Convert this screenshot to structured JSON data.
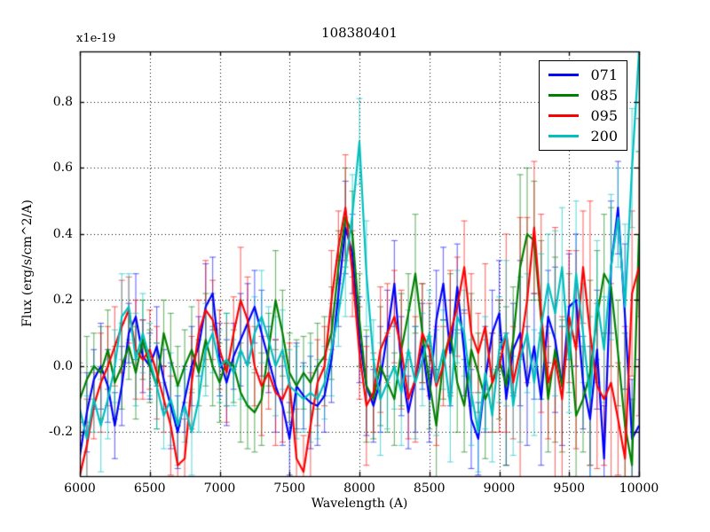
{
  "chart_data": {
    "type": "line",
    "title": "108380401",
    "offset_text": "x1e-19",
    "xlabel": "Wavelength (A)",
    "ylabel": "Flux (erg/s/cm^2/A)",
    "xlim": [
      6000,
      10000
    ],
    "ylim": [
      -0.333,
      0.953
    ],
    "xticks": [
      6000,
      6500,
      7000,
      7500,
      8000,
      8500,
      9000,
      9500,
      10000
    ],
    "xtick_labels": [
      "6000",
      "6500",
      "7000",
      "7500",
      "8000",
      "8500",
      "9000",
      "9500",
      "10000"
    ],
    "yticks": [
      -0.2,
      0.0,
      0.2,
      0.4,
      0.6,
      0.8
    ],
    "ytick_labels": [
      "-0.2",
      "0.0",
      "0.2",
      "0.4",
      "0.6",
      "0.8"
    ],
    "grid": true,
    "grid_style": "dotted",
    "legend_position": "upper right",
    "x": [
      6000,
      6050,
      6100,
      6150,
      6200,
      6250,
      6300,
      6350,
      6400,
      6450,
      6500,
      6550,
      6600,
      6650,
      6700,
      6750,
      6800,
      6850,
      6900,
      6950,
      7000,
      7050,
      7100,
      7150,
      7200,
      7250,
      7300,
      7350,
      7400,
      7450,
      7500,
      7550,
      7600,
      7650,
      7700,
      7750,
      7800,
      7850,
      7900,
      7950,
      8000,
      8050,
      8100,
      8150,
      8200,
      8250,
      8300,
      8350,
      8400,
      8450,
      8500,
      8550,
      8600,
      8650,
      8700,
      8750,
      8800,
      8850,
      8900,
      8950,
      9000,
      9050,
      9100,
      9150,
      9200,
      9250,
      9300,
      9350,
      9400,
      9450,
      9500,
      9550,
      9600,
      9650,
      9700,
      9750,
      9800,
      9850,
      9900,
      9950,
      10000
    ],
    "series": [
      {
        "name": "071",
        "color": "#0000ff",
        "values": [
          -0.27,
          -0.14,
          -0.04,
          0.0,
          -0.06,
          -0.18,
          -0.06,
          0.1,
          0.15,
          0.03,
          0.0,
          0.06,
          -0.04,
          -0.12,
          -0.2,
          -0.1,
          0.0,
          0.06,
          0.18,
          0.22,
          0.02,
          -0.05,
          0.03,
          0.08,
          0.13,
          0.18,
          0.1,
          0.02,
          -0.06,
          -0.12,
          -0.22,
          -0.06,
          -0.09,
          -0.11,
          -0.12,
          -0.09,
          0.02,
          0.22,
          0.42,
          0.34,
          0.08,
          -0.06,
          -0.12,
          -0.04,
          0.1,
          0.25,
          0.0,
          -0.14,
          -0.04,
          0.06,
          -0.1,
          0.14,
          0.25,
          0.04,
          0.24,
          0.04,
          -0.16,
          -0.22,
          -0.04,
          0.1,
          0.16,
          -0.1,
          0.05,
          0.1,
          -0.06,
          0.06,
          -0.1,
          0.15,
          0.08,
          -0.06,
          0.18,
          0.2,
          -0.05,
          -0.16,
          0.05,
          -0.28,
          0.3,
          0.48,
          0.15,
          -0.22,
          -0.18
        ],
        "errors": [
          0.1,
          0.12,
          0.09,
          0.13,
          0.11,
          0.1,
          0.12,
          0.09,
          0.13,
          0.11,
          0.1,
          0.12,
          0.09,
          0.13,
          0.11,
          0.1,
          0.12,
          0.09,
          0.13,
          0.11,
          0.11,
          0.13,
          0.1,
          0.14,
          0.12,
          0.11,
          0.13,
          0.1,
          0.14,
          0.12,
          0.11,
          0.13,
          0.1,
          0.14,
          0.12,
          0.11,
          0.13,
          0.1,
          0.14,
          0.12,
          0.13,
          0.15,
          0.11,
          0.16,
          0.13,
          0.13,
          0.15,
          0.11,
          0.16,
          0.13,
          0.13,
          0.15,
          0.11,
          0.16,
          0.13,
          0.13,
          0.15,
          0.11,
          0.16,
          0.13,
          0.16,
          0.2,
          0.14,
          0.22,
          0.18,
          0.16,
          0.2,
          0.14,
          0.22,
          0.18,
          0.16,
          0.2,
          0.14,
          0.22,
          0.18,
          0.16,
          0.2,
          0.14,
          0.22,
          0.18,
          0.2
        ]
      },
      {
        "name": "085",
        "color": "#008000",
        "values": [
          -0.1,
          -0.04,
          0.0,
          -0.02,
          0.05,
          -0.05,
          0.0,
          0.06,
          -0.02,
          0.08,
          0.0,
          -0.06,
          0.1,
          0.02,
          -0.06,
          0.0,
          0.05,
          -0.02,
          0.08,
          0.0,
          -0.05,
          0.02,
          0.0,
          -0.08,
          -0.12,
          -0.14,
          -0.1,
          0.05,
          0.2,
          0.1,
          -0.02,
          -0.06,
          -0.02,
          -0.05,
          0.0,
          0.03,
          0.1,
          0.3,
          0.45,
          0.4,
          0.14,
          -0.06,
          -0.1,
          0.0,
          -0.05,
          -0.1,
          0.05,
          0.16,
          0.28,
          0.1,
          -0.05,
          -0.18,
          0.02,
          0.1,
          -0.05,
          -0.12,
          0.05,
          -0.02,
          -0.1,
          -0.05,
          0.02,
          -0.06,
          0.08,
          0.3,
          0.4,
          0.38,
          0.14,
          -0.1,
          0.05,
          -0.06,
          0.1,
          -0.15,
          -0.1,
          -0.02,
          0.15,
          0.28,
          0.24,
          0.04,
          -0.18,
          -0.3,
          0.4
        ],
        "errors": [
          0.11,
          0.13,
          0.1,
          0.14,
          0.12,
          0.11,
          0.13,
          0.1,
          0.14,
          0.12,
          0.11,
          0.13,
          0.1,
          0.14,
          0.12,
          0.11,
          0.13,
          0.1,
          0.14,
          0.12,
          0.12,
          0.14,
          0.11,
          0.15,
          0.13,
          0.12,
          0.14,
          0.11,
          0.15,
          0.13,
          0.12,
          0.14,
          0.11,
          0.15,
          0.13,
          0.12,
          0.14,
          0.11,
          0.15,
          0.13,
          0.14,
          0.17,
          0.12,
          0.18,
          0.15,
          0.14,
          0.17,
          0.12,
          0.18,
          0.15,
          0.14,
          0.17,
          0.12,
          0.18,
          0.15,
          0.14,
          0.17,
          0.12,
          0.18,
          0.15,
          0.18,
          0.24,
          0.16,
          0.28,
          0.2,
          0.18,
          0.24,
          0.16,
          0.28,
          0.2,
          0.18,
          0.24,
          0.16,
          0.28,
          0.2,
          0.18,
          0.24,
          0.16,
          0.28,
          0.2,
          0.25
        ]
      },
      {
        "name": "095",
        "color": "#ff0000",
        "values": [
          -0.33,
          -0.24,
          -0.12,
          -0.05,
          0.0,
          0.06,
          0.12,
          0.17,
          0.05,
          0.02,
          0.05,
          -0.02,
          -0.1,
          -0.18,
          -0.3,
          -0.28,
          -0.05,
          0.1,
          0.17,
          0.14,
          0.05,
          -0.02,
          0.1,
          0.2,
          0.14,
          0.0,
          -0.06,
          -0.02,
          -0.08,
          -0.1,
          -0.05,
          -0.28,
          -0.32,
          -0.18,
          -0.05,
          0.0,
          0.2,
          0.36,
          0.48,
          0.28,
          0.04,
          -0.12,
          -0.08,
          0.05,
          0.1,
          0.15,
          0.05,
          -0.1,
          -0.04,
          0.1,
          0.05,
          -0.06,
          0.0,
          0.1,
          0.18,
          0.3,
          0.1,
          0.04,
          0.12,
          -0.05,
          0.0,
          0.1,
          -0.05,
          0.05,
          0.2,
          0.42,
          0.16,
          -0.05,
          0.02,
          -0.1,
          0.15,
          0.05,
          0.3,
          0.1,
          -0.06,
          -0.1,
          -0.05,
          -0.16,
          -0.28,
          0.22,
          0.3
        ],
        "errors": [
          0.12,
          0.14,
          0.1,
          0.15,
          0.12,
          0.12,
          0.14,
          0.1,
          0.15,
          0.12,
          0.12,
          0.14,
          0.1,
          0.15,
          0.12,
          0.12,
          0.14,
          0.1,
          0.15,
          0.12,
          0.12,
          0.15,
          0.11,
          0.16,
          0.13,
          0.12,
          0.15,
          0.11,
          0.16,
          0.13,
          0.12,
          0.15,
          0.11,
          0.16,
          0.13,
          0.12,
          0.15,
          0.11,
          0.16,
          0.13,
          0.14,
          0.18,
          0.12,
          0.19,
          0.15,
          0.14,
          0.18,
          0.12,
          0.19,
          0.15,
          0.14,
          0.18,
          0.12,
          0.19,
          0.15,
          0.14,
          0.18,
          0.12,
          0.19,
          0.15,
          0.2,
          0.3,
          0.17,
          0.4,
          0.25,
          0.2,
          0.3,
          0.17,
          0.4,
          0.25,
          0.2,
          0.3,
          0.17,
          0.4,
          0.25,
          0.2,
          0.3,
          0.17,
          0.4,
          0.25,
          0.45
        ]
      },
      {
        "name": "200",
        "color": "#00bfbf",
        "values": [
          -0.13,
          -0.22,
          -0.1,
          -0.18,
          -0.1,
          0.0,
          0.15,
          0.18,
          0.02,
          0.1,
          0.02,
          -0.06,
          -0.15,
          -0.1,
          -0.18,
          -0.12,
          -0.2,
          -0.1,
          0.05,
          0.1,
          0.0,
          0.02,
          -0.02,
          0.05,
          0.0,
          0.1,
          0.15,
          0.08,
          0.0,
          0.05,
          -0.06,
          -0.08,
          -0.1,
          -0.08,
          -0.1,
          -0.05,
          0.05,
          0.16,
          0.3,
          0.46,
          0.68,
          0.28,
          0.02,
          -0.1,
          -0.05,
          0.0,
          -0.08,
          0.05,
          -0.05,
          0.02,
          0.1,
          -0.05,
          0.05,
          -0.12,
          0.15,
          0.1,
          -0.08,
          -0.2,
          -0.02,
          -0.15,
          0.05,
          0.1,
          -0.12,
          0.02,
          0.1,
          -0.05,
          0.12,
          0.25,
          0.16,
          0.3,
          0.02,
          0.28,
          0.1,
          -0.1,
          0.2,
          0.05,
          0.3,
          0.45,
          0.18,
          0.6,
          0.95
        ],
        "errors": [
          0.11,
          0.13,
          0.1,
          0.14,
          0.12,
          0.11,
          0.13,
          0.1,
          0.14,
          0.12,
          0.11,
          0.13,
          0.1,
          0.14,
          0.12,
          0.11,
          0.13,
          0.1,
          0.14,
          0.12,
          0.11,
          0.14,
          0.1,
          0.15,
          0.12,
          0.11,
          0.14,
          0.1,
          0.15,
          0.12,
          0.11,
          0.14,
          0.1,
          0.15,
          0.12,
          0.11,
          0.14,
          0.1,
          0.15,
          0.12,
          0.13,
          0.16,
          0.12,
          0.17,
          0.14,
          0.13,
          0.16,
          0.12,
          0.17,
          0.14,
          0.13,
          0.16,
          0.12,
          0.17,
          0.14,
          0.13,
          0.16,
          0.12,
          0.17,
          0.14,
          0.16,
          0.22,
          0.15,
          0.25,
          0.18,
          0.16,
          0.22,
          0.15,
          0.25,
          0.18,
          0.16,
          0.22,
          0.15,
          0.25,
          0.18,
          0.16,
          0.22,
          0.15,
          0.25,
          0.18,
          0.3
        ]
      }
    ]
  }
}
